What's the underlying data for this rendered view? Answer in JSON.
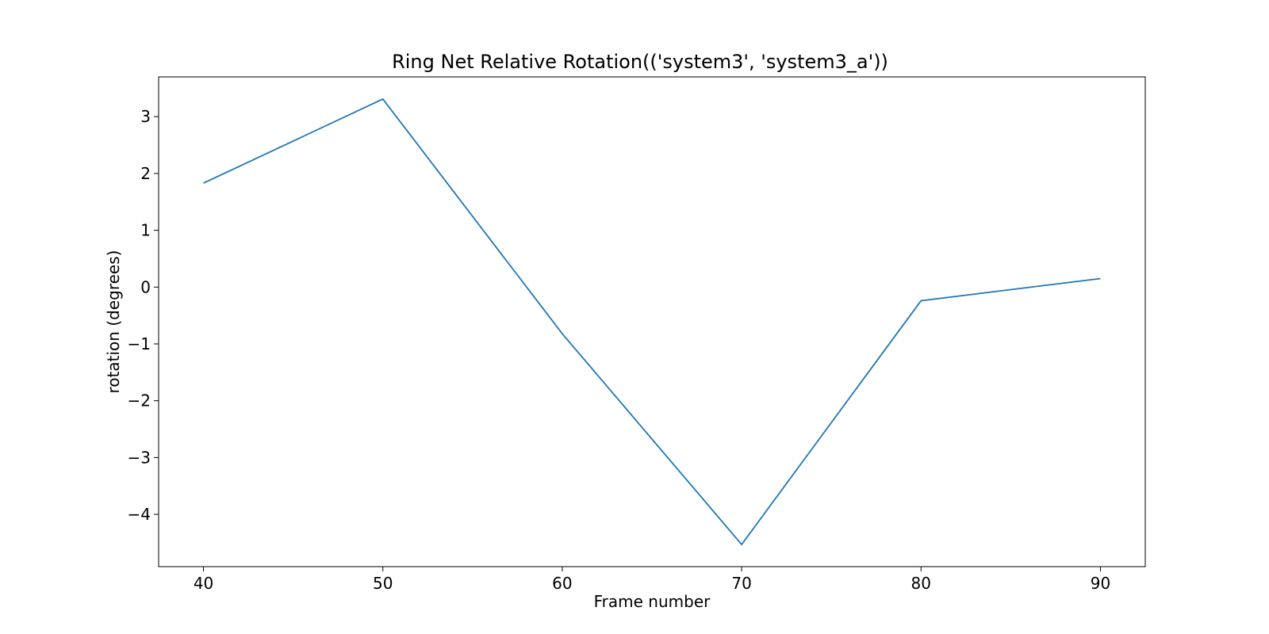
{
  "chart_data": {
    "type": "line",
    "title": "Ring Net Relative Rotation(('system3', 'system3_a'))",
    "xlabel": "Frame number",
    "ylabel": "rotation (degrees)",
    "x": [
      40,
      50,
      60,
      70,
      80,
      90
    ],
    "series": [
      {
        "values": [
          1.83,
          3.31,
          -0.82,
          -4.53,
          -0.24,
          0.15
        ],
        "color": "#1f77b4"
      }
    ],
    "xlim": [
      37.5,
      92.5
    ],
    "ylim": [
      -4.92,
      3.7
    ],
    "xticks": [
      40,
      50,
      60,
      70,
      80,
      90
    ],
    "xtick_labels": [
      "40",
      "50",
      "60",
      "70",
      "80",
      "90"
    ],
    "yticks": [
      3,
      2,
      1,
      0,
      -1,
      -2,
      -3,
      -4
    ],
    "ytick_labels": [
      "3",
      "2",
      "1",
      "0",
      "−1",
      "−2",
      "−3",
      "−4"
    ],
    "grid": false,
    "legend": "none"
  }
}
